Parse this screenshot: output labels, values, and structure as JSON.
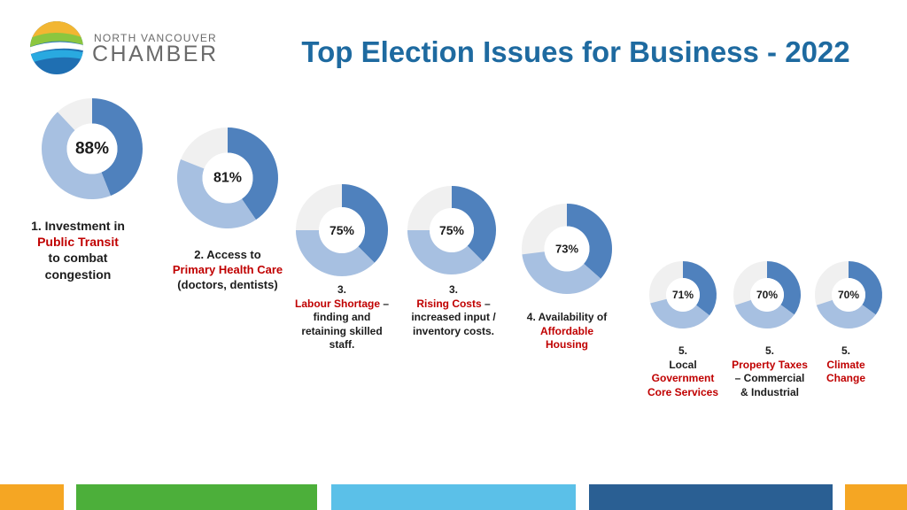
{
  "header": {
    "org_line1": "NORTH VANCOUVER",
    "org_line2": "CHAMBER",
    "title": "Top Election Issues for Business - 2022"
  },
  "colors": {
    "title": "#1e6aa0",
    "donut_dark": "#4f81bd",
    "donut_light": "#a7c0e1",
    "donut_track": "#f0f0f0",
    "highlight_text": "#c00000",
    "footer": [
      "#f5a623",
      "#4caf3a",
      "#5bc0e8",
      "#2a5f93",
      "#f5a623"
    ]
  },
  "chart_data": {
    "type": "donut",
    "items": [
      {
        "rank": "1.",
        "value": 88,
        "label": "88%",
        "caption": [
          [
            {
              "t": "1.   Investment in"
            }
          ],
          [
            {
              "t": "Public Transit",
              "hl": true
            }
          ],
          [
            {
              "t": "to combat"
            }
          ],
          [
            {
              "t": "congestion"
            }
          ]
        ]
      },
      {
        "rank": "2.",
        "value": 81,
        "label": "81%",
        "caption": [
          [
            {
              "t": "2. Access to"
            }
          ],
          [
            {
              "t": "Primary Health Care",
              "hl": true
            }
          ],
          [
            {
              "t": "(doctors, dentists)"
            }
          ]
        ]
      },
      {
        "rank": "3.",
        "value": 75,
        "label": "75%",
        "caption": [
          [
            {
              "t": "3."
            }
          ],
          [
            {
              "t": "Labour Shortage",
              "hl": true
            },
            {
              "t": " –"
            }
          ],
          [
            {
              "t": "finding and"
            }
          ],
          [
            {
              "t": "retaining skilled"
            }
          ],
          [
            {
              "t": "staff."
            }
          ]
        ]
      },
      {
        "rank": "3.",
        "value": 75,
        "label": "75%",
        "caption": [
          [
            {
              "t": "3."
            }
          ],
          [
            {
              "t": "Rising Costs",
              "hl": true
            },
            {
              "t": " –"
            }
          ],
          [
            {
              "t": "increased input /"
            }
          ],
          [
            {
              "t": "inventory costs."
            }
          ]
        ]
      },
      {
        "rank": "4.",
        "value": 73,
        "label": "73%",
        "caption": [
          [
            {
              "t": "4. Availability of"
            }
          ],
          [
            {
              "t": "Affordable",
              "hl": true
            }
          ],
          [
            {
              "t": "Housing",
              "hl": true
            }
          ]
        ]
      },
      {
        "rank": "5.",
        "value": 71,
        "label": "71%",
        "caption": [
          [
            {
              "t": "5."
            }
          ],
          [
            {
              "t": "Local"
            }
          ],
          [
            {
              "t": "Government",
              "hl": true
            }
          ],
          [
            {
              "t": "Core Services",
              "hl": true
            }
          ]
        ]
      },
      {
        "rank": "5.",
        "value": 70,
        "label": "70%",
        "caption": [
          [
            {
              "t": "5."
            }
          ],
          [
            {
              "t": "Property Taxes",
              "hl": true
            }
          ],
          [
            {
              "t": "– Commercial"
            }
          ],
          [
            {
              "t": "& Industrial"
            }
          ]
        ]
      },
      {
        "rank": "5.",
        "value": 70,
        "label": "70%",
        "caption": [
          [
            {
              "t": "5."
            }
          ],
          [
            {
              "t": "Climate",
              "hl": true
            }
          ],
          [
            {
              "t": "Change",
              "hl": true
            }
          ]
        ]
      }
    ]
  }
}
